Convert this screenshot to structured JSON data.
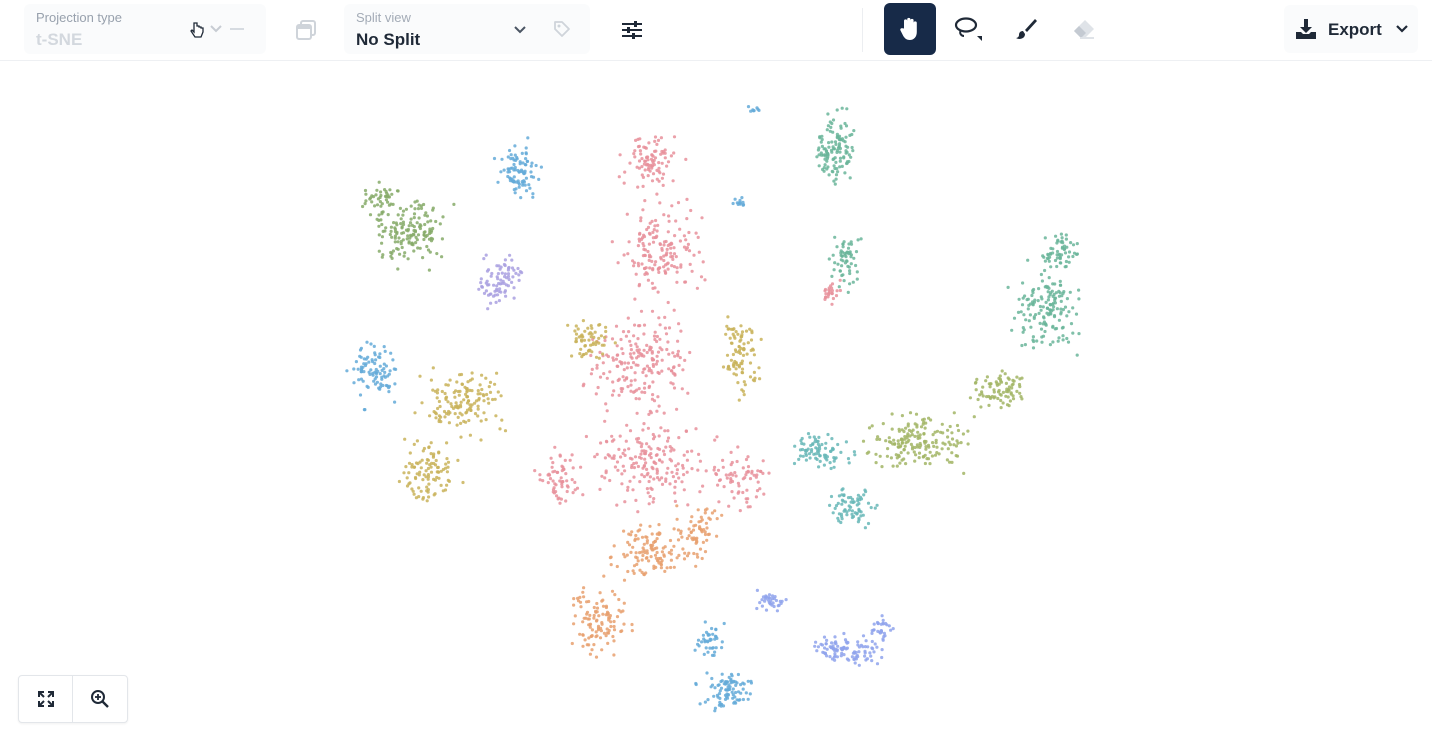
{
  "toolbar": {
    "projection": {
      "label": "Projection type",
      "value": "t-SNE"
    },
    "split": {
      "label": "Split view",
      "value": "No Split"
    },
    "export_label": "Export"
  },
  "tools": {
    "pan": {
      "icon": "hand-icon",
      "selected": true
    },
    "lasso": {
      "icon": "lasso-icon",
      "selected": false
    },
    "brush": {
      "icon": "brush-icon",
      "selected": false
    },
    "eraser": {
      "icon": "eraser-icon",
      "selected": false
    }
  },
  "colors": {
    "accent": "#172a48",
    "clusters": [
      "#e8919b",
      "#e8a06e",
      "#c9b35a",
      "#a2b565",
      "#86aa68",
      "#6ab59a",
      "#67b7b7",
      "#64aad8",
      "#a9a0e0",
      "#8fa3ec"
    ]
  },
  "zoom_controls": {
    "fit_icon": "expand-icon",
    "zoom_icon": "zoom-in-icon"
  }
}
